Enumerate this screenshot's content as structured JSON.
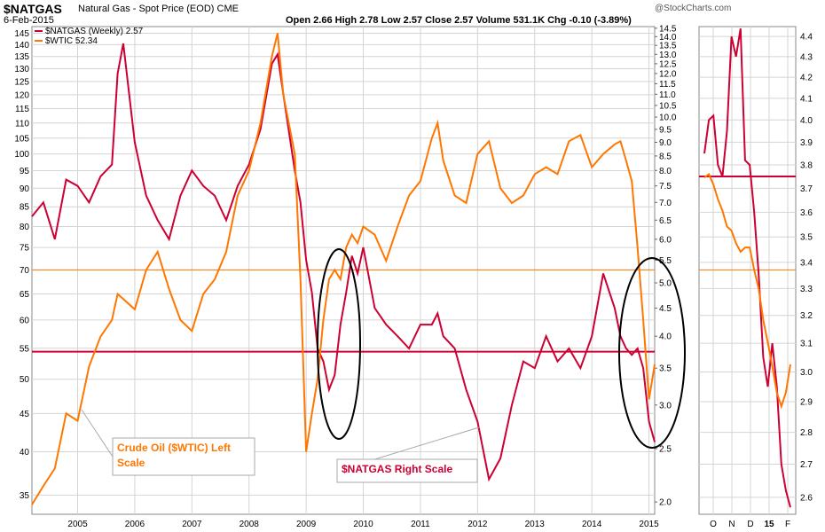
{
  "header": {
    "symbol": "$NATGAS",
    "description": "Natural Gas - Spot Price (EOD)",
    "exchange": "CME",
    "date": "6-Feb-2015",
    "watermark": "@StockCharts.com",
    "ohlc": "Open 2.66  High 2.78  Low 2.57  Close 2.57  Volume 531.1K  Chg -0.10 (-3.89%)"
  },
  "legend": [
    {
      "label": "$NATGAS (Weekly) 2.57",
      "color": "#cc0033"
    },
    {
      "label": "$WTIC 52.34",
      "color": "#ff7700"
    }
  ],
  "colors": {
    "natgas": "#cc0033",
    "wtic": "#ff7700",
    "grid": "#d4d4d4",
    "callout_border": "#aaaaaa"
  },
  "chart_data": [
    {
      "type": "line",
      "title": "$NATGAS Natural Gas - Spot Price (EOD)",
      "log_scale": true,
      "grid": true,
      "legend_position": "top-left",
      "x_ticks": [
        "2005",
        "2006",
        "2007",
        "2008",
        "2009",
        "2010",
        "2011",
        "2012",
        "2013",
        "2014",
        "2015"
      ],
      "left_axis": {
        "series": "$WTIC",
        "ylim": [
          33,
          148
        ],
        "ticks": [
          35,
          40,
          45,
          50,
          55,
          60,
          65,
          70,
          75,
          80,
          85,
          90,
          95,
          100,
          105,
          110,
          115,
          120,
          125,
          130,
          135,
          140,
          145
        ]
      },
      "right_axis": {
        "series": "$NATGAS",
        "ylim": [
          1.9,
          14.6
        ],
        "ticks": [
          2.0,
          2.5,
          3.0,
          3.5,
          4.0,
          4.5,
          5.0,
          5.5,
          6.0,
          6.5,
          7.0,
          7.5,
          8.0,
          8.5,
          9.0,
          9.5,
          10.0,
          10.5,
          11.0,
          11.5,
          12.0,
          12.5,
          13.0,
          13.5,
          14.0,
          14.5
        ]
      },
      "x": [
        2004.2,
        2004.4,
        2004.6,
        2004.8,
        2005.0,
        2005.2,
        2005.4,
        2005.6,
        2005.7,
        2005.8,
        2006.0,
        2006.2,
        2006.4,
        2006.6,
        2006.8,
        2007.0,
        2007.2,
        2007.4,
        2007.6,
        2007.8,
        2008.0,
        2008.2,
        2008.4,
        2008.5,
        2008.6,
        2008.8,
        2008.9,
        2009.0,
        2009.1,
        2009.2,
        2009.3,
        2009.4,
        2009.5,
        2009.6,
        2009.7,
        2009.8,
        2009.9,
        2010.0,
        2010.2,
        2010.4,
        2010.6,
        2010.8,
        2011.0,
        2011.2,
        2011.3,
        2011.4,
        2011.6,
        2011.8,
        2012.0,
        2012.2,
        2012.4,
        2012.6,
        2012.8,
        2013.0,
        2013.2,
        2013.4,
        2013.6,
        2013.8,
        2014.0,
        2014.2,
        2014.4,
        2014.5,
        2014.6,
        2014.7,
        2014.8,
        2014.9,
        2015.0,
        2015.1
      ],
      "series": [
        {
          "name": "$NATGAS (Weekly) 2.57",
          "axis": "right",
          "color": "#cc0033",
          "values": [
            6.6,
            7.0,
            6.0,
            7.7,
            7.5,
            7.0,
            7.8,
            8.2,
            12.0,
            13.6,
            9.0,
            7.2,
            6.5,
            6.0,
            7.2,
            8.0,
            7.5,
            7.2,
            6.5,
            7.5,
            8.2,
            9.5,
            12.5,
            13.0,
            11.0,
            8.0,
            7.0,
            5.5,
            4.8,
            3.8,
            3.6,
            3.2,
            3.4,
            4.2,
            4.8,
            5.6,
            5.2,
            5.8,
            4.5,
            4.2,
            4.0,
            3.8,
            4.2,
            4.2,
            4.4,
            4.0,
            3.8,
            3.2,
            2.8,
            2.2,
            2.4,
            3.0,
            3.6,
            3.5,
            4.0,
            3.6,
            3.8,
            3.5,
            4.0,
            5.2,
            4.5,
            4.0,
            3.8,
            3.7,
            3.8,
            3.5,
            2.8,
            2.57
          ]
        },
        {
          "name": "$WTIC 52.34",
          "axis": "left",
          "color": "#ff7700",
          "values": [
            34,
            36,
            38,
            45,
            44,
            52,
            57,
            60,
            65,
            64,
            62,
            70,
            74,
            66,
            60,
            58,
            65,
            68,
            74,
            88,
            95,
            110,
            135,
            145,
            120,
            100,
            68,
            40,
            45,
            50,
            60,
            68,
            70,
            68,
            75,
            78,
            76,
            80,
            78,
            72,
            80,
            88,
            92,
            105,
            110,
            98,
            88,
            86,
            100,
            104,
            90,
            86,
            88,
            94,
            96,
            94,
            104,
            106,
            96,
            100,
            103,
            104,
            98,
            92,
            75,
            60,
            47,
            52.34
          ]
        }
      ]
    },
    {
      "type": "line",
      "title": "",
      "log_scale": true,
      "grid": true,
      "x_ticks": [
        "O",
        "N",
        "D",
        "15",
        "F"
      ],
      "right_axis": {
        "series": "$NATGAS",
        "ylim": [
          2.55,
          4.45
        ],
        "ticks": [
          2.6,
          2.7,
          2.8,
          2.9,
          3.0,
          3.1,
          3.2,
          3.3,
          3.4,
          3.5,
          3.6,
          3.7,
          3.8,
          3.9,
          4.0,
          4.1,
          4.2,
          4.3,
          4.4
        ]
      },
      "left_axis": {
        "series": "$WTIC",
        "ylim": [
          33,
          148
        ]
      },
      "x": [
        0,
        1,
        2,
        3,
        4,
        5,
        6,
        7,
        8,
        9,
        10,
        11,
        12,
        13,
        14,
        15,
        16,
        17,
        18,
        19
      ],
      "series": [
        {
          "name": "$NATGAS (Weekly) 2.57",
          "axis": "right",
          "color": "#cc0033",
          "values": [
            3.85,
            4.0,
            4.02,
            3.8,
            3.75,
            3.95,
            4.4,
            4.3,
            4.44,
            3.82,
            3.8,
            3.6,
            3.35,
            3.05,
            2.95,
            3.1,
            2.95,
            2.7,
            2.62,
            2.57
          ]
        },
        {
          "name": "$WTIC 52.34",
          "axis": "left",
          "color": "#ff7700",
          "values": [
            93,
            94,
            91,
            87,
            84,
            80,
            79,
            76,
            74,
            75,
            75,
            70,
            66,
            60,
            56,
            52,
            48,
            46,
            48,
            52.34
          ]
        }
      ]
    }
  ],
  "annotations": [
    {
      "text": "Crude Oil ($WTIC) Left Scale"
    },
    {
      "text": "$NATGAS Right Scale"
    }
  ],
  "reference_levels": {
    "natgas": 3.75,
    "wtic": 70
  }
}
